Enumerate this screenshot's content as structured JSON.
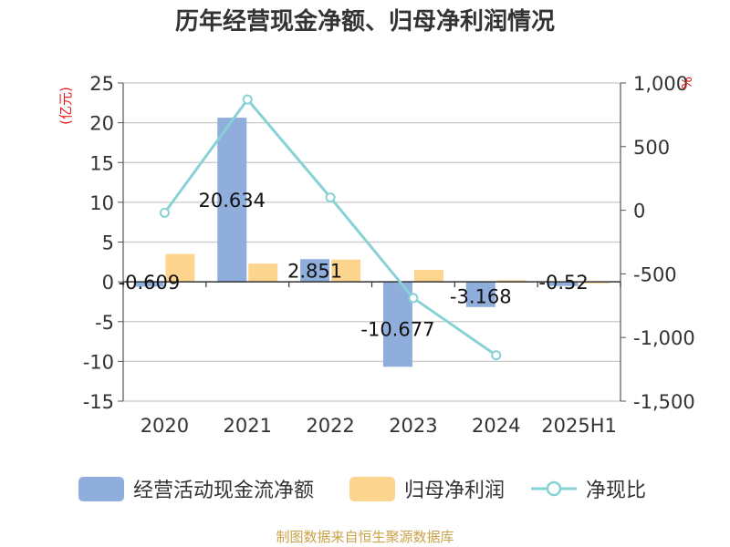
{
  "title": "历年经营现金净额、归母净利润情况",
  "source": "制图数据来自恒生聚源数据库",
  "colors": {
    "ocf": "#8faedc",
    "np": "#fdd58e",
    "ratio": "#88d2d6",
    "unit": "#e02020"
  },
  "legend": {
    "ocf": "经营活动现金流净额",
    "np": "归母净利润",
    "ratio": "净现比"
  },
  "chart_data": {
    "type": "bar",
    "categories": [
      "2020",
      "2021",
      "2022",
      "2023",
      "2024",
      "2025H1"
    ],
    "left_axis": {
      "unit": "(亿元)",
      "range": [
        -15,
        25
      ],
      "ticks": [
        "-15",
        "-10",
        "-5",
        "0",
        "5",
        "10",
        "15",
        "20",
        "25"
      ]
    },
    "right_axis": {
      "unit": "%",
      "range": [
        -1500,
        1000
      ],
      "ticks": [
        "-1,500",
        "-1,000",
        "-500",
        "0",
        "500",
        "1,000"
      ]
    },
    "series": [
      {
        "name": "经营活动现金流净额",
        "type": "bar",
        "axis": "left",
        "values": [
          -0.609,
          20.634,
          2.851,
          -10.677,
          -3.168,
          -0.52
        ],
        "labels": [
          "-0.609",
          "20.634",
          "2.851",
          "-10.677",
          "-3.168",
          "-0.52"
        ]
      },
      {
        "name": "归母净利润",
        "type": "bar",
        "axis": "left",
        "values": [
          3.5,
          2.3,
          2.8,
          1.5,
          0.2,
          -0.2
        ]
      },
      {
        "name": "净现比",
        "type": "line",
        "axis": "right",
        "values": [
          -20,
          870,
          100,
          -690,
          -1140,
          null
        ]
      }
    ],
    "grid": true,
    "legend_position": "bottom"
  }
}
